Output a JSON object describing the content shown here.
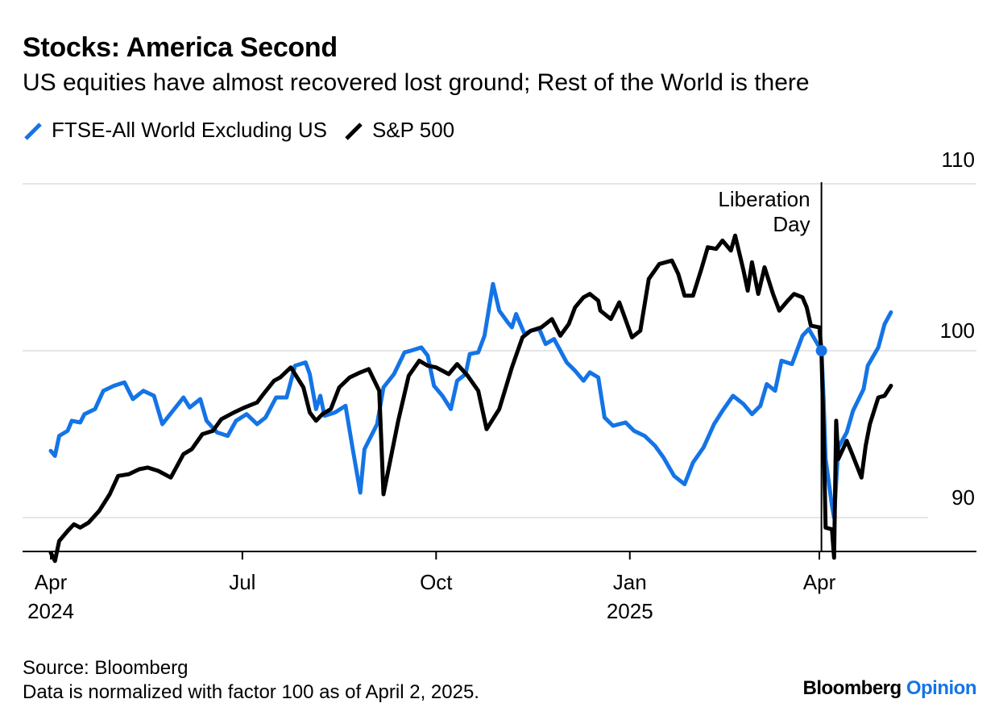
{
  "title": "Stocks: America Second",
  "subtitle": "US equities have almost recovered lost ground; Rest of the World is there",
  "legend": [
    {
      "label": "FTSE-All World Excluding US",
      "color": "#1474e6"
    },
    {
      "label": "S&P 500",
      "color": "#000000"
    }
  ],
  "annotation": {
    "line1": "Liberation",
    "line2": "Day",
    "date": "2025-04-02"
  },
  "footer": {
    "source": "Source: Bloomberg",
    "note": "Data is normalized with factor 100 as of April 2, 2025."
  },
  "brand": {
    "name": "Bloomberg",
    "suffix": "Opinion"
  },
  "chart_data": {
    "type": "line",
    "xlabel": "",
    "ylabel": "",
    "xlim": [
      "2024-03-28",
      "2025-05-13"
    ],
    "ylim": [
      88,
      110.5
    ],
    "y_ticks": [
      90,
      100,
      110
    ],
    "x_ticks": [
      {
        "date": "2024-04-01",
        "label": "Apr",
        "year": "2024"
      },
      {
        "date": "2024-07-01",
        "label": "Jul",
        "year": ""
      },
      {
        "date": "2024-10-01",
        "label": "Oct",
        "year": ""
      },
      {
        "date": "2025-01-01",
        "label": "Jan",
        "year": "2025"
      },
      {
        "date": "2025-04-01",
        "label": "Apr",
        "year": ""
      }
    ],
    "grid": true,
    "legend_position": "top-left",
    "series": [
      {
        "name": "FTSE-All World Excluding US",
        "color": "#1474e6",
        "points": [
          [
            "2024-04-01",
            94.0
          ],
          [
            "2024-04-03",
            93.7
          ],
          [
            "2024-04-05",
            94.9
          ],
          [
            "2024-04-09",
            95.2
          ],
          [
            "2024-04-11",
            95.8
          ],
          [
            "2024-04-15",
            95.7
          ],
          [
            "2024-04-17",
            96.2
          ],
          [
            "2024-04-22",
            96.5
          ],
          [
            "2024-04-26",
            97.6
          ],
          [
            "2024-05-01",
            97.9
          ],
          [
            "2024-05-06",
            98.1
          ],
          [
            "2024-05-10",
            97.1
          ],
          [
            "2024-05-15",
            97.6
          ],
          [
            "2024-05-20",
            97.3
          ],
          [
            "2024-05-24",
            95.6
          ],
          [
            "2024-05-29",
            96.4
          ],
          [
            "2024-06-03",
            97.2
          ],
          [
            "2024-06-06",
            96.6
          ],
          [
            "2024-06-11",
            97.1
          ],
          [
            "2024-06-14",
            95.8
          ],
          [
            "2024-06-19",
            95.1
          ],
          [
            "2024-06-24",
            94.9
          ],
          [
            "2024-06-28",
            95.8
          ],
          [
            "2024-07-03",
            96.2
          ],
          [
            "2024-07-08",
            95.6
          ],
          [
            "2024-07-12",
            96.0
          ],
          [
            "2024-07-17",
            97.2
          ],
          [
            "2024-07-22",
            97.2
          ],
          [
            "2024-07-26",
            99.1
          ],
          [
            "2024-07-31",
            99.3
          ],
          [
            "2024-08-02",
            98.6
          ],
          [
            "2024-08-05",
            96.5
          ],
          [
            "2024-08-07",
            97.3
          ],
          [
            "2024-08-09",
            96.1
          ],
          [
            "2024-08-14",
            96.3
          ],
          [
            "2024-08-19",
            96.7
          ],
          [
            "2024-08-22",
            94.4
          ],
          [
            "2024-08-26",
            91.5
          ],
          [
            "2024-08-28",
            94.1
          ],
          [
            "2024-09-03",
            95.6
          ],
          [
            "2024-09-06",
            97.8
          ],
          [
            "2024-09-11",
            98.6
          ],
          [
            "2024-09-16",
            99.9
          ],
          [
            "2024-09-19",
            100.0
          ],
          [
            "2024-09-24",
            100.2
          ],
          [
            "2024-09-27",
            99.7
          ],
          [
            "2024-09-30",
            97.9
          ],
          [
            "2024-10-04",
            97.3
          ],
          [
            "2024-10-08",
            96.5
          ],
          [
            "2024-10-11",
            98.2
          ],
          [
            "2024-10-15",
            98.6
          ],
          [
            "2024-10-17",
            99.8
          ],
          [
            "2024-10-21",
            99.9
          ],
          [
            "2024-10-24",
            100.9
          ],
          [
            "2024-10-28",
            104.0
          ],
          [
            "2024-10-31",
            102.4
          ],
          [
            "2024-11-04",
            101.7
          ],
          [
            "2024-11-06",
            101.4
          ],
          [
            "2024-11-08",
            102.2
          ],
          [
            "2024-11-12",
            101.0
          ],
          [
            "2024-11-15",
            101.2
          ],
          [
            "2024-11-19",
            101.3
          ],
          [
            "2024-11-22",
            100.4
          ],
          [
            "2024-11-26",
            100.7
          ],
          [
            "2024-12-02",
            99.3
          ],
          [
            "2024-12-06",
            98.8
          ],
          [
            "2024-12-10",
            98.2
          ],
          [
            "2024-12-13",
            98.7
          ],
          [
            "2024-12-17",
            98.4
          ],
          [
            "2024-12-20",
            96.0
          ],
          [
            "2024-12-24",
            95.5
          ],
          [
            "2024-12-30",
            95.7
          ],
          [
            "2025-01-03",
            95.2
          ],
          [
            "2025-01-08",
            94.9
          ],
          [
            "2025-01-13",
            94.3
          ],
          [
            "2025-01-17",
            93.6
          ],
          [
            "2025-01-22",
            92.5
          ],
          [
            "2025-01-27",
            92.0
          ],
          [
            "2025-01-31",
            93.3
          ],
          [
            "2025-02-05",
            94.2
          ],
          [
            "2025-02-10",
            95.6
          ],
          [
            "2025-02-14",
            96.4
          ],
          [
            "2025-02-19",
            97.3
          ],
          [
            "2025-02-24",
            96.8
          ],
          [
            "2025-02-28",
            96.2
          ],
          [
            "2025-03-04",
            96.7
          ],
          [
            "2025-03-07",
            98.0
          ],
          [
            "2025-03-11",
            97.6
          ],
          [
            "2025-03-14",
            99.4
          ],
          [
            "2025-03-19",
            99.2
          ],
          [
            "2025-03-24",
            100.9
          ],
          [
            "2025-03-27",
            101.3
          ],
          [
            "2025-04-02",
            100.0
          ],
          [
            "2025-04-03",
            97.2
          ],
          [
            "2025-04-04",
            93.5
          ],
          [
            "2025-04-07",
            90.7
          ],
          [
            "2025-04-08",
            90.0
          ],
          [
            "2025-04-10",
            94.2
          ],
          [
            "2025-04-14",
            95.1
          ],
          [
            "2025-04-17",
            96.4
          ],
          [
            "2025-04-22",
            97.7
          ],
          [
            "2025-04-24",
            99.1
          ],
          [
            "2025-04-29",
            100.2
          ],
          [
            "2025-05-02",
            101.6
          ],
          [
            "2025-05-05",
            102.3
          ]
        ]
      },
      {
        "name": "S&P 500",
        "color": "#000000",
        "points": [
          [
            "2024-04-01",
            87.9
          ],
          [
            "2024-04-03",
            87.4
          ],
          [
            "2024-04-05",
            88.6
          ],
          [
            "2024-04-09",
            89.2
          ],
          [
            "2024-04-12",
            89.6
          ],
          [
            "2024-04-15",
            89.4
          ],
          [
            "2024-04-19",
            89.7
          ],
          [
            "2024-04-24",
            90.4
          ],
          [
            "2024-04-29",
            91.4
          ],
          [
            "2024-05-03",
            92.5
          ],
          [
            "2024-05-08",
            92.6
          ],
          [
            "2024-05-13",
            92.9
          ],
          [
            "2024-05-17",
            93.0
          ],
          [
            "2024-05-22",
            92.8
          ],
          [
            "2024-05-28",
            92.4
          ],
          [
            "2024-06-03",
            93.8
          ],
          [
            "2024-06-07",
            94.1
          ],
          [
            "2024-06-12",
            95.0
          ],
          [
            "2024-06-17",
            95.2
          ],
          [
            "2024-06-21",
            95.9
          ],
          [
            "2024-06-27",
            96.3
          ],
          [
            "2024-07-02",
            96.6
          ],
          [
            "2024-07-08",
            96.9
          ],
          [
            "2024-07-11",
            97.4
          ],
          [
            "2024-07-16",
            98.2
          ],
          [
            "2024-07-19",
            98.4
          ],
          [
            "2024-07-24",
            99.0
          ],
          [
            "2024-07-30",
            97.8
          ],
          [
            "2024-08-02",
            96.3
          ],
          [
            "2024-08-05",
            95.8
          ],
          [
            "2024-08-08",
            96.2
          ],
          [
            "2024-08-12",
            96.5
          ],
          [
            "2024-08-16",
            97.8
          ],
          [
            "2024-08-21",
            98.4
          ],
          [
            "2024-08-26",
            98.7
          ],
          [
            "2024-08-30",
            98.9
          ],
          [
            "2024-09-04",
            97.6
          ],
          [
            "2024-09-06",
            91.4
          ],
          [
            "2024-09-10",
            93.9
          ],
          [
            "2024-09-13",
            95.8
          ],
          [
            "2024-09-18",
            98.5
          ],
          [
            "2024-09-23",
            99.4
          ],
          [
            "2024-09-27",
            99.1
          ],
          [
            "2024-10-01",
            99.0
          ],
          [
            "2024-10-07",
            98.6
          ],
          [
            "2024-10-11",
            99.2
          ],
          [
            "2024-10-16",
            98.5
          ],
          [
            "2024-10-21",
            97.6
          ],
          [
            "2024-10-25",
            95.3
          ],
          [
            "2024-10-31",
            96.5
          ],
          [
            "2024-11-06",
            99.0
          ],
          [
            "2024-11-11",
            100.8
          ],
          [
            "2024-11-15",
            101.2
          ],
          [
            "2024-11-20",
            101.4
          ],
          [
            "2024-11-25",
            101.9
          ],
          [
            "2024-11-29",
            100.9
          ],
          [
            "2024-12-03",
            101.6
          ],
          [
            "2024-12-06",
            102.6
          ],
          [
            "2024-12-10",
            103.2
          ],
          [
            "2024-12-13",
            103.4
          ],
          [
            "2024-12-17",
            103.0
          ],
          [
            "2024-12-18",
            102.4
          ],
          [
            "2024-12-23",
            101.9
          ],
          [
            "2024-12-27",
            102.9
          ],
          [
            "2025-01-02",
            100.8
          ],
          [
            "2025-01-06",
            101.2
          ],
          [
            "2025-01-10",
            104.3
          ],
          [
            "2025-01-15",
            105.2
          ],
          [
            "2025-01-21",
            105.4
          ],
          [
            "2025-01-24",
            104.6
          ],
          [
            "2025-01-27",
            103.3
          ],
          [
            "2025-01-31",
            103.3
          ],
          [
            "2025-02-04",
            104.9
          ],
          [
            "2025-02-07",
            106.2
          ],
          [
            "2025-02-11",
            106.1
          ],
          [
            "2025-02-14",
            106.6
          ],
          [
            "2025-02-18",
            106.0
          ],
          [
            "2025-02-20",
            106.9
          ],
          [
            "2025-02-24",
            104.8
          ],
          [
            "2025-02-26",
            103.6
          ],
          [
            "2025-02-28",
            105.3
          ],
          [
            "2025-03-03",
            103.4
          ],
          [
            "2025-03-06",
            105.0
          ],
          [
            "2025-03-10",
            103.4
          ],
          [
            "2025-03-13",
            102.4
          ],
          [
            "2025-03-17",
            103.0
          ],
          [
            "2025-03-20",
            103.4
          ],
          [
            "2025-03-24",
            103.2
          ],
          [
            "2025-03-26",
            102.6
          ],
          [
            "2025-03-28",
            101.5
          ],
          [
            "2025-04-01",
            101.4
          ],
          [
            "2025-04-02",
            100.0
          ],
          [
            "2025-04-03",
            95.2
          ],
          [
            "2025-04-04",
            89.4
          ],
          [
            "2025-04-07",
            89.3
          ],
          [
            "2025-04-08",
            87.6
          ],
          [
            "2025-04-09",
            95.8
          ],
          [
            "2025-04-10",
            93.5
          ],
          [
            "2025-04-14",
            94.6
          ],
          [
            "2025-04-16",
            94.0
          ],
          [
            "2025-04-21",
            92.4
          ],
          [
            "2025-04-23",
            94.3
          ],
          [
            "2025-04-25",
            95.6
          ],
          [
            "2025-04-29",
            97.2
          ],
          [
            "2025-05-02",
            97.3
          ],
          [
            "2025-05-05",
            97.9
          ]
        ]
      }
    ]
  }
}
